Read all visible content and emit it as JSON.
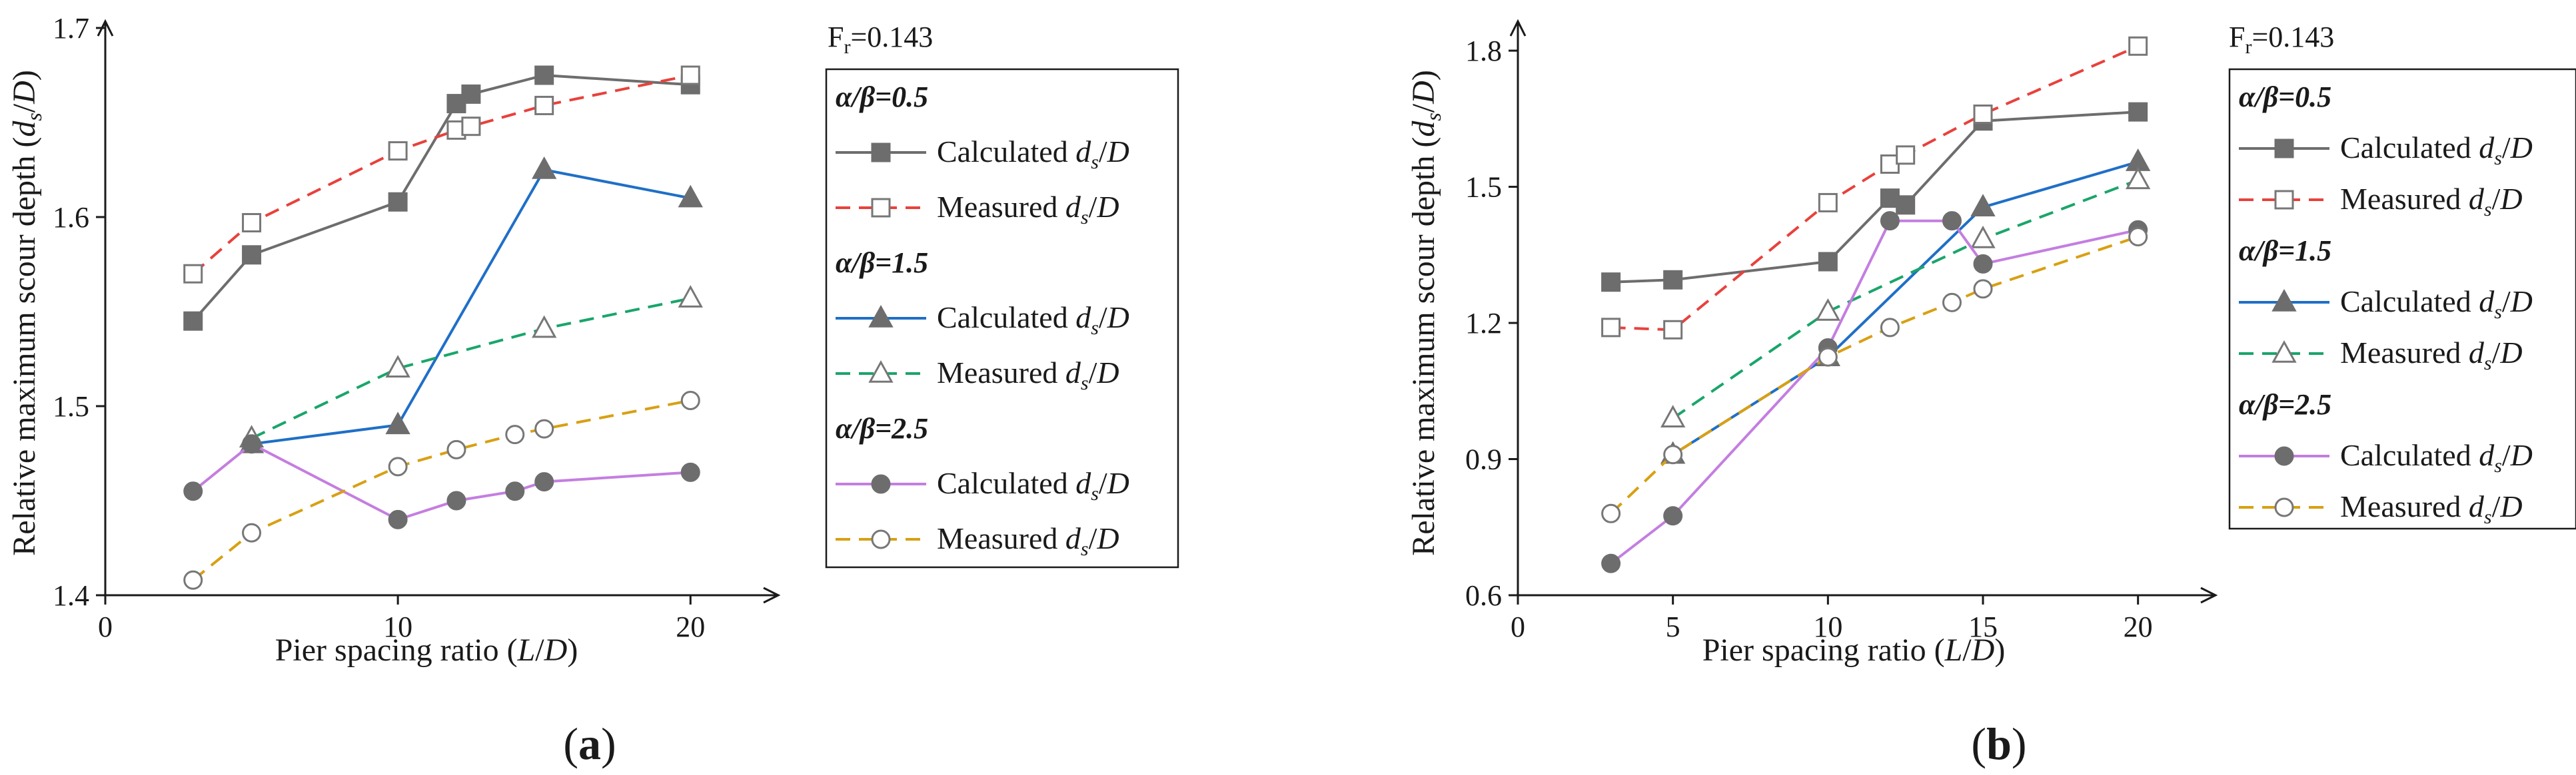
{
  "chart_data": [
    {
      "type": "line",
      "panel": "(a)",
      "panel_letter": "a",
      "fr_label": "0.143",
      "xlabel": "Pier spacing ratio (L/D)",
      "xlabel_parts": [
        "Pier spacing ratio (",
        "L",
        "/",
        "D",
        ")"
      ],
      "ylabel": "Relative maximum scour depth (ds/D)",
      "ylabel_parts": [
        "Relative maximum scour depth (",
        "d",
        "s",
        "/",
        "D",
        ")"
      ],
      "xlim": [
        0,
        23
      ],
      "ylim": [
        1.4,
        1.7
      ],
      "xticks": [
        0,
        10,
        20
      ],
      "yticks": [
        1.4,
        1.5,
        1.6,
        1.7
      ],
      "ytick_labels": [
        "1.4",
        "1.5",
        "1.6",
        "1.7"
      ],
      "legend_groups": [
        {
          "head": "α/β=0.5",
          "calc": "Calculated ds/D",
          "meas": "Measured ds/D"
        },
        {
          "head": "α/β=1.5",
          "calc": "Calculated ds/D",
          "meas": "Measured ds/D"
        },
        {
          "head": "α/β=2.5",
          "calc": "Calculated ds/D",
          "meas": "Measured ds/D"
        }
      ],
      "series": [
        {
          "name": "α/β=0.5 Calculated ds/D",
          "group": 0,
          "kind": "calc",
          "marker": "square",
          "color": "#6d6d6d",
          "dash": false,
          "x": [
            3,
            5,
            10,
            12,
            12.5,
            15,
            20
          ],
          "y": [
            1.545,
            1.58,
            1.608,
            1.66,
            1.665,
            1.675,
            1.67
          ]
        },
        {
          "name": "α/β=0.5 Measured ds/D",
          "group": 0,
          "kind": "meas",
          "marker": "square",
          "color": "#e8413c",
          "dash": true,
          "x": [
            3,
            5,
            10,
            12,
            12.5,
            15,
            20
          ],
          "y": [
            1.57,
            1.597,
            1.635,
            1.646,
            1.648,
            1.659,
            1.675
          ]
        },
        {
          "name": "α/β=1.5 Calculated ds/D",
          "group": 1,
          "kind": "calc",
          "marker": "triangle",
          "color": "#1f6fc7",
          "dash": false,
          "x": [
            5,
            10,
            15,
            20
          ],
          "y": [
            1.48,
            1.49,
            1.625,
            1.61
          ]
        },
        {
          "name": "α/β=1.5 Measured ds/D",
          "group": 1,
          "kind": "meas",
          "marker": "triangle",
          "color": "#1aa56a",
          "dash": true,
          "x": [
            5,
            10,
            15,
            20
          ],
          "y": [
            1.483,
            1.52,
            1.541,
            1.557
          ]
        },
        {
          "name": "α/β=2.5 Calculated ds/D",
          "group": 2,
          "kind": "calc",
          "marker": "circle",
          "color": "#c47ee0",
          "dash": false,
          "x": [
            3,
            5,
            10,
            12,
            14,
            15,
            20
          ],
          "y": [
            1.455,
            1.48,
            1.44,
            1.45,
            1.455,
            1.46,
            1.465
          ]
        },
        {
          "name": "α/β=2.5 Measured ds/D",
          "group": 2,
          "kind": "meas",
          "marker": "circle",
          "color": "#d8a012",
          "dash": true,
          "x": [
            3,
            5,
            10,
            12,
            14,
            15,
            20
          ],
          "y": [
            1.408,
            1.433,
            1.468,
            1.477,
            1.485,
            1.488,
            1.503
          ]
        }
      ]
    },
    {
      "type": "line",
      "panel": "(b)",
      "panel_letter": "b",
      "fr_label": "0.143",
      "xlabel": "Pier spacing ratio (L/D)",
      "xlabel_parts": [
        "Pier spacing ratio (",
        "L",
        "/",
        "D",
        ")"
      ],
      "ylabel": "Relative maximum scour depth (ds/D)",
      "ylabel_parts": [
        "Relative maximum scour depth (",
        "d",
        "s",
        "/",
        "D",
        ")"
      ],
      "xlim": [
        0,
        22.5
      ],
      "ylim": [
        0.6,
        1.85
      ],
      "xticks": [
        0,
        5,
        10,
        15,
        20
      ],
      "yticks": [
        0.6,
        0.9,
        1.2,
        1.5,
        1.8
      ],
      "ytick_labels": [
        "0.6",
        "0.9",
        "1.2",
        "1.5",
        "1.8"
      ],
      "legend_groups": [
        {
          "head": "α/β=0.5",
          "calc": "Calculated ds/D",
          "meas": "Measured ds/D"
        },
        {
          "head": "α/β=1.5",
          "calc": "Calculated ds/D",
          "meas": "Measured ds/D"
        },
        {
          "head": "α/β=2.5",
          "calc": "Calculated ds/D",
          "meas": "Measured ds/D"
        }
      ],
      "series": [
        {
          "name": "α/β=0.5 Calculated ds/D",
          "group": 0,
          "kind": "calc",
          "marker": "square",
          "color": "#6d6d6d",
          "dash": false,
          "x": [
            3,
            5,
            10,
            12,
            12.5,
            15,
            20
          ],
          "y": [
            1.29,
            1.295,
            1.335,
            1.475,
            1.46,
            1.645,
            1.665
          ]
        },
        {
          "name": "α/β=0.5 Measured ds/D",
          "group": 0,
          "kind": "meas",
          "marker": "square",
          "color": "#e8413c",
          "dash": true,
          "x": [
            3,
            5,
            10,
            12,
            12.5,
            15,
            20
          ],
          "y": [
            1.19,
            1.185,
            1.465,
            1.55,
            1.57,
            1.66,
            1.81
          ]
        },
        {
          "name": "α/β=1.5 Calculated ds/D",
          "group": 1,
          "kind": "calc",
          "marker": "triangle",
          "color": "#1f6fc7",
          "dash": false,
          "x": [
            5,
            10,
            15,
            20
          ],
          "y": [
            0.91,
            1.125,
            1.455,
            1.555
          ]
        },
        {
          "name": "α/β=1.5 Measured ds/D",
          "group": 1,
          "kind": "meas",
          "marker": "triangle",
          "color": "#1aa56a",
          "dash": true,
          "x": [
            5,
            10,
            15,
            20
          ],
          "y": [
            0.99,
            1.225,
            1.385,
            1.515
          ]
        },
        {
          "name": "α/β=2.5 Calculated ds/D",
          "group": 2,
          "kind": "calc",
          "marker": "circle",
          "color": "#c47ee0",
          "dash": false,
          "x": [
            3,
            5,
            10,
            12,
            14,
            15,
            20
          ],
          "y": [
            0.67,
            0.775,
            1.145,
            1.425,
            1.425,
            1.33,
            1.405
          ]
        },
        {
          "name": "α/β=2.5 Measured ds/D",
          "group": 2,
          "kind": "meas",
          "marker": "circle",
          "color": "#d8a012",
          "dash": true,
          "x": [
            3,
            5,
            10,
            12,
            14,
            15,
            20
          ],
          "y": [
            0.78,
            0.91,
            1.125,
            1.19,
            1.245,
            1.275,
            1.39
          ]
        }
      ]
    }
  ]
}
